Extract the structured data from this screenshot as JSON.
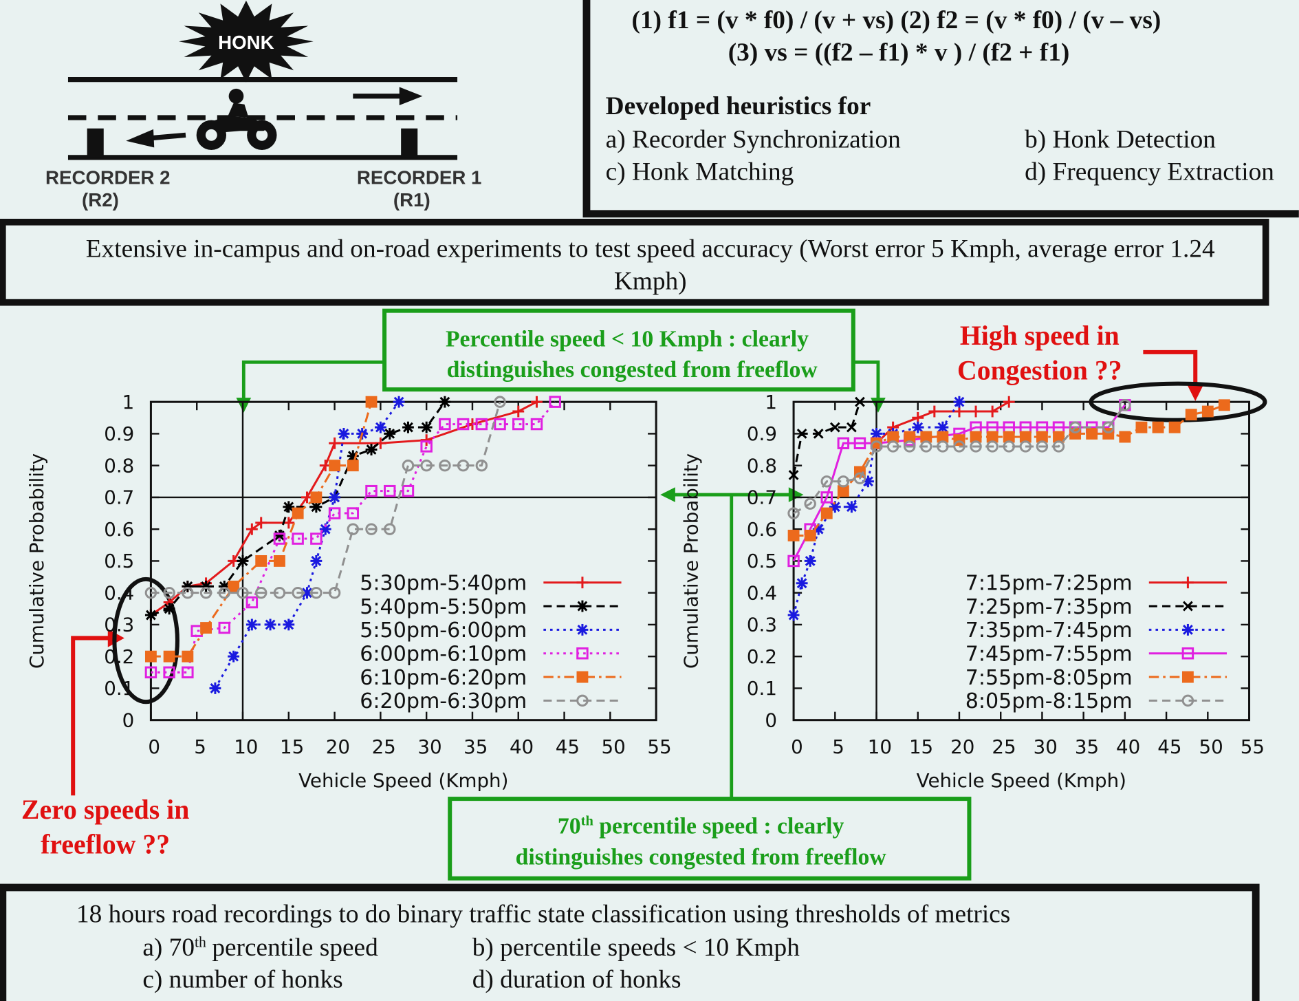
{
  "diagram": {
    "honk": "HONK",
    "recorder_2": "RECORDER 2",
    "recorder_2_short": "(R2)",
    "recorder_1": "RECORDER 1",
    "recorder_1_short": "(R1)"
  },
  "equations": {
    "line_1": "(1) f1 = (v * f0) / (v + vs) (2) f2 = (v * f0) / (v – vs)",
    "line_2": "(3) vs = ((f2 – f1) * v ) / (f2 + f1)"
  },
  "heuristics": {
    "title": "Developed heuristics for",
    "items": [
      "a) Recorder Synchronization",
      "b) Honk Detection",
      "c) Honk Matching",
      "d) Frequency Extraction"
    ]
  },
  "experiments": {
    "lines": [
      "Extensive in-campus and on-road experiments to test speed accuracy (Worst error 5 Kmph, average error 1.24",
      "Kmph)"
    ]
  },
  "callouts": {
    "percentile_speed": [
      "Percentile speed < 10 Kmph : clearly",
      "distinguishes congested from freeflow"
    ],
    "high_speed": [
      "High speed in",
      "Congestion ??"
    ],
    "zero_speeds": [
      "Zero speeds in",
      "freeflow ??"
    ],
    "seventieth": {
      "number": "70",
      "sup": "th",
      "line_1": "percentile speed : clearly",
      "line_2": "distinguishes congested from freeflow"
    }
  },
  "classification": {
    "intro": "18 hours road recordings to do binary traffic state classification using thresholds of metrics",
    "item_a": {
      "number": "a) 70",
      "sup": "th",
      "text": "percentile speed"
    },
    "items": [
      "b) percentile speeds < 10 Kmph",
      "c) number of honks",
      "d) duration of honks"
    ]
  },
  "chart_data": [
    {
      "type": "line",
      "xlabel": "Vehicle Speed (Kmph)",
      "ylabel": "Cumulative Probability",
      "xlim": [
        0,
        55
      ],
      "ylim": [
        0,
        1
      ],
      "xticks": [
        0,
        5,
        10,
        15,
        20,
        25,
        30,
        35,
        40,
        45,
        50,
        55
      ],
      "yticks": [
        0,
        0.1,
        0.2,
        0.3,
        0.4,
        0.5,
        0.6,
        0.7,
        0.8,
        0.9,
        1
      ],
      "hlines": [
        0.7
      ],
      "vlines": [
        10
      ],
      "legend": "lower right",
      "series": [
        {
          "name": "5:30pm-5:40pm",
          "color": "#e31a1c",
          "marker": "plus",
          "dash": "solid",
          "x": [
            0,
            2,
            4,
            6,
            9,
            11,
            12,
            15,
            17,
            19,
            20,
            25,
            30,
            35,
            40,
            42
          ],
          "values": [
            0.33,
            0.37,
            0.42,
            0.43,
            0.5,
            0.6,
            0.62,
            0.62,
            0.7,
            0.8,
            0.87,
            0.87,
            0.88,
            0.93,
            0.97,
            1
          ]
        },
        {
          "name": "5:40pm-5:50pm",
          "color": "#000000",
          "marker": "star",
          "dash": "dashed",
          "x": [
            0,
            2,
            4,
            6,
            8,
            10,
            14,
            15,
            18,
            20,
            22,
            24,
            26,
            28,
            30,
            32
          ],
          "values": [
            0.33,
            0.35,
            0.42,
            0.42,
            0.42,
            0.5,
            0.58,
            0.67,
            0.67,
            0.7,
            0.83,
            0.85,
            0.9,
            0.92,
            0.92,
            1
          ]
        },
        {
          "name": "5:50pm-6:00pm",
          "color": "#1a1adf",
          "marker": "star",
          "dash": "dotted",
          "x": [
            7,
            9,
            11,
            13,
            15,
            17,
            18,
            19,
            20,
            21,
            23,
            25,
            27
          ],
          "values": [
            0.1,
            0.2,
            0.3,
            0.3,
            0.3,
            0.4,
            0.5,
            0.6,
            0.7,
            0.9,
            0.9,
            0.92,
            1
          ]
        },
        {
          "name": "6:00pm-6:10pm",
          "color": "#e020e0",
          "marker": "square-open",
          "dash": "dotted",
          "x": [
            0,
            2,
            4,
            5,
            8,
            11,
            14,
            16,
            18,
            20,
            22,
            24,
            26,
            28,
            30,
            32,
            34,
            36,
            38,
            40,
            42,
            44
          ],
          "values": [
            0.15,
            0.15,
            0.15,
            0.28,
            0.29,
            0.37,
            0.57,
            0.57,
            0.57,
            0.65,
            0.65,
            0.72,
            0.72,
            0.72,
            0.86,
            0.93,
            0.93,
            0.93,
            0.93,
            0.93,
            0.93,
            1
          ]
        },
        {
          "name": "6:10pm-6:20pm",
          "color": "#ec6a1c",
          "marker": "square",
          "dash": "dashdot",
          "x": [
            0,
            2,
            4,
            6,
            9,
            12,
            14,
            16,
            18,
            20,
            22,
            24
          ],
          "values": [
            0.2,
            0.2,
            0.2,
            0.29,
            0.42,
            0.5,
            0.5,
            0.65,
            0.7,
            0.8,
            0.8,
            1
          ]
        },
        {
          "name": "6:20pm-6:30pm",
          "color": "#909090",
          "marker": "circle-open",
          "dash": "dashed",
          "x": [
            0,
            2,
            4,
            6,
            8,
            10,
            12,
            14,
            16,
            18,
            20,
            22,
            24,
            26,
            28,
            30,
            32,
            34,
            36,
            38
          ],
          "values": [
            0.4,
            0.4,
            0.4,
            0.4,
            0.4,
            0.4,
            0.4,
            0.4,
            0.4,
            0.4,
            0.4,
            0.6,
            0.6,
            0.6,
            0.8,
            0.8,
            0.8,
            0.8,
            0.8,
            1
          ]
        }
      ]
    },
    {
      "type": "line",
      "xlabel": "Vehicle Speed (Kmph)",
      "ylabel": "Cumulative Probability",
      "xlim": [
        0,
        55
      ],
      "ylim": [
        0,
        1
      ],
      "xticks": [
        0,
        5,
        10,
        15,
        20,
        25,
        30,
        35,
        40,
        45,
        50,
        55
      ],
      "yticks": [
        0,
        0.1,
        0.2,
        0.3,
        0.4,
        0.5,
        0.6,
        0.7,
        0.8,
        0.9,
        1
      ],
      "hlines": [
        0.7
      ],
      "vlines": [
        10
      ],
      "legend": "lower right",
      "series": [
        {
          "name": "7:15pm-7:25pm",
          "color": "#e31a1c",
          "marker": "plus",
          "dash": "solid",
          "x": [
            10,
            12,
            15,
            17,
            20,
            22,
            24,
            26
          ],
          "values": [
            0.87,
            0.92,
            0.95,
            0.97,
            0.97,
            0.97,
            0.97,
            1
          ]
        },
        {
          "name": "7:25pm-7:35pm",
          "color": "#000000",
          "marker": "cross",
          "dash": "dashed",
          "x": [
            0,
            1,
            3,
            5,
            7,
            8
          ],
          "values": [
            0.77,
            0.9,
            0.9,
            0.92,
            0.92,
            1
          ]
        },
        {
          "name": "7:35pm-7:45pm",
          "color": "#1a1adf",
          "marker": "star",
          "dash": "dotted",
          "x": [
            0,
            1,
            2,
            3,
            5,
            7,
            9,
            10,
            12,
            15,
            18,
            20
          ],
          "values": [
            0.33,
            0.43,
            0.5,
            0.6,
            0.67,
            0.67,
            0.75,
            0.9,
            0.9,
            0.92,
            0.92,
            1
          ]
        },
        {
          "name": "7:45pm-7:55pm",
          "color": "#e020e0",
          "marker": "square-open",
          "dash": "solid",
          "x": [
            0,
            2,
            4,
            6,
            8,
            10,
            14,
            20,
            22,
            24,
            26,
            28,
            30,
            32,
            34,
            36,
            38,
            40
          ],
          "values": [
            0.5,
            0.6,
            0.7,
            0.87,
            0.87,
            0.87,
            0.88,
            0.9,
            0.92,
            0.92,
            0.92,
            0.92,
            0.92,
            0.92,
            0.92,
            0.92,
            0.92,
            0.99
          ]
        },
        {
          "name": "7:55pm-8:05pm",
          "color": "#ec6a1c",
          "marker": "square",
          "dash": "dashdot",
          "x": [
            0,
            2,
            4,
            6,
            8,
            10,
            12,
            14,
            16,
            18,
            20,
            22,
            24,
            26,
            28,
            30,
            32,
            34,
            36,
            38,
            40,
            42,
            44,
            46,
            48,
            50,
            52
          ],
          "values": [
            0.58,
            0.58,
            0.65,
            0.72,
            0.78,
            0.87,
            0.89,
            0.89,
            0.89,
            0.89,
            0.88,
            0.89,
            0.89,
            0.89,
            0.89,
            0.89,
            0.89,
            0.9,
            0.9,
            0.9,
            0.89,
            0.92,
            0.92,
            0.92,
            0.96,
            0.97,
            0.99
          ]
        },
        {
          "name": "8:05pm-8:15pm",
          "color": "#909090",
          "marker": "circle-open",
          "dash": "dashed",
          "x": [
            0,
            2,
            4,
            6,
            8,
            10,
            12,
            14,
            16,
            18,
            20,
            22,
            24,
            26,
            28,
            30,
            32,
            34,
            38,
            40
          ],
          "values": [
            0.65,
            0.68,
            0.75,
            0.75,
            0.76,
            0.86,
            0.86,
            0.86,
            0.86,
            0.86,
            0.86,
            0.86,
            0.86,
            0.86,
            0.86,
            0.86,
            0.86,
            0.92,
            0.92,
            0.99
          ]
        }
      ]
    }
  ]
}
